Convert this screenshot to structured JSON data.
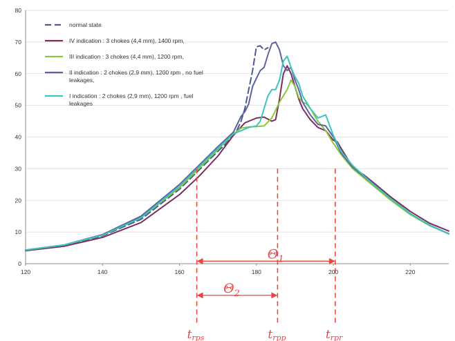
{
  "chart_data": {
    "type": "line",
    "xlim": [
      120,
      230
    ],
    "ylim": [
      0,
      80
    ],
    "x_ticks": [
      "120",
      "140",
      "160",
      "180",
      "200",
      "220"
    ],
    "y_ticks": [
      "0",
      "10",
      "20",
      "30",
      "40",
      "50",
      "60",
      "70",
      "80"
    ],
    "grid": "horizontal",
    "legend_position": "top-left",
    "series": [
      {
        "name": "normal state",
        "color": "#4a5a8c",
        "dash": "dashed",
        "points": [
          [
            120,
            4.3
          ],
          [
            130,
            5.8
          ],
          [
            140,
            8.8
          ],
          [
            150,
            14
          ],
          [
            160,
            23.5
          ],
          [
            165,
            29.5
          ],
          [
            170,
            35.5
          ],
          [
            172,
            37.8
          ],
          [
            174,
            40.5
          ],
          [
            175,
            42.3
          ],
          [
            176,
            45
          ],
          [
            177,
            49
          ],
          [
            178,
            55
          ],
          [
            179,
            61
          ],
          [
            180,
            68.5
          ],
          [
            181,
            68.8
          ],
          [
            182,
            67.5
          ],
          [
            183,
            68.2
          ]
        ]
      },
      {
        "name": "IV indication : 3 chokes (4,4 mm), 1400 rpm,",
        "color": "#7b2d5e",
        "dash": "solid",
        "points": [
          [
            120,
            4.1
          ],
          [
            130,
            5.5
          ],
          [
            140,
            8.3
          ],
          [
            150,
            13
          ],
          [
            160,
            21.8
          ],
          [
            165,
            27.5
          ],
          [
            170,
            34
          ],
          [
            174,
            40.5
          ],
          [
            177,
            44.5
          ],
          [
            180,
            46
          ],
          [
            182,
            46.3
          ],
          [
            184,
            45
          ],
          [
            185,
            45.5
          ],
          [
            186,
            52
          ],
          [
            187,
            60
          ],
          [
            188,
            62.5
          ],
          [
            189,
            60
          ],
          [
            190,
            56
          ],
          [
            191,
            52
          ],
          [
            192,
            49
          ],
          [
            194,
            45.5
          ],
          [
            196,
            43
          ],
          [
            198,
            42
          ],
          [
            200,
            39
          ],
          [
            201,
            38.5
          ],
          [
            202,
            36.5
          ],
          [
            204,
            32.5
          ],
          [
            206,
            29.5
          ],
          [
            208,
            28
          ],
          [
            210,
            26
          ],
          [
            215,
            21
          ],
          [
            220,
            16.5
          ],
          [
            225,
            12.8
          ],
          [
            230,
            10.3
          ]
        ]
      },
      {
        "name": "III indication : 3 chokes (4,4 mm), 1200 rpm,",
        "color": "#8cc63f",
        "dash": "solid",
        "points": [
          [
            120,
            4.3
          ],
          [
            130,
            5.9
          ],
          [
            140,
            9
          ],
          [
            150,
            14.5
          ],
          [
            160,
            24
          ],
          [
            165,
            30
          ],
          [
            170,
            36
          ],
          [
            174,
            41
          ],
          [
            176,
            42.8
          ],
          [
            178,
            43.2
          ],
          [
            180,
            43.3
          ],
          [
            182,
            43.5
          ],
          [
            184,
            46
          ],
          [
            186,
            51
          ],
          [
            188,
            55
          ],
          [
            189,
            58
          ],
          [
            190,
            56
          ],
          [
            191,
            52.5
          ],
          [
            192,
            51
          ],
          [
            193,
            50.5
          ],
          [
            194,
            49
          ],
          [
            196,
            45
          ],
          [
            198,
            42
          ],
          [
            200,
            38
          ],
          [
            202,
            34.5
          ],
          [
            205,
            30
          ],
          [
            210,
            25
          ],
          [
            215,
            20
          ],
          [
            220,
            15.5
          ],
          [
            225,
            12
          ],
          [
            230,
            9.5
          ]
        ]
      },
      {
        "name": "II indication : 2 chokes (2,9 mm), 1200 rpm , no fuel leakages,",
        "color": "#5a62a0",
        "dash": "solid",
        "points": [
          [
            120,
            4.3
          ],
          [
            130,
            5.9
          ],
          [
            140,
            9.2
          ],
          [
            150,
            15
          ],
          [
            160,
            25
          ],
          [
            165,
            31
          ],
          [
            170,
            37
          ],
          [
            174,
            41.5
          ],
          [
            175,
            44
          ],
          [
            176,
            46.5
          ],
          [
            177,
            48
          ],
          [
            178,
            50.5
          ],
          [
            179,
            56
          ],
          [
            180,
            58.5
          ],
          [
            181,
            61
          ],
          [
            182,
            62
          ],
          [
            183,
            66
          ],
          [
            184,
            69.5
          ],
          [
            185,
            70
          ],
          [
            186,
            67.5
          ],
          [
            187,
            62.5
          ],
          [
            188,
            61
          ],
          [
            189,
            62
          ],
          [
            190,
            58
          ],
          [
            191,
            55
          ],
          [
            192,
            51
          ],
          [
            194,
            47
          ],
          [
            196,
            44
          ],
          [
            198,
            43.5
          ],
          [
            200,
            40
          ],
          [
            202,
            35
          ],
          [
            205,
            30.5
          ],
          [
            210,
            25.5
          ],
          [
            215,
            20.5
          ],
          [
            220,
            15.8
          ],
          [
            225,
            12.2
          ],
          [
            230,
            9.4
          ]
        ]
      },
      {
        "name": "I indication : 2 chokes (2,9 mm), 1200 rpm , fuel leakages",
        "color": "#3cc3c0",
        "dash": "solid",
        "points": [
          [
            120,
            4.3
          ],
          [
            130,
            5.9
          ],
          [
            140,
            9
          ],
          [
            150,
            14.5
          ],
          [
            160,
            24.5
          ],
          [
            165,
            30.5
          ],
          [
            170,
            36.5
          ],
          [
            174,
            41
          ],
          [
            178,
            43
          ],
          [
            180,
            43.5
          ],
          [
            181,
            45
          ],
          [
            182,
            49
          ],
          [
            183,
            53
          ],
          [
            184,
            55
          ],
          [
            185,
            55
          ],
          [
            186,
            58
          ],
          [
            187,
            64
          ],
          [
            188,
            65.5
          ],
          [
            189,
            62
          ],
          [
            190,
            59
          ],
          [
            191,
            57
          ],
          [
            192,
            53
          ],
          [
            194,
            49
          ],
          [
            196,
            46
          ],
          [
            198,
            47
          ],
          [
            200,
            40.5
          ],
          [
            202,
            35.5
          ],
          [
            205,
            31
          ],
          [
            210,
            25.5
          ],
          [
            215,
            20.5
          ],
          [
            220,
            15.8
          ],
          [
            225,
            12.2
          ],
          [
            230,
            9.5
          ]
        ]
      }
    ],
    "markers": [
      {
        "label": "t",
        "sub": "rps",
        "x": 164.5
      },
      {
        "label": "t",
        "sub": "rpp",
        "x": 185.5
      },
      {
        "label": "t",
        "sub": "rpr",
        "x": 200.5
      }
    ],
    "spans": [
      {
        "label": "Θ",
        "sub": "1",
        "x1": 164.5,
        "x2": 200.5,
        "y": 0.8
      },
      {
        "label": "Θ",
        "sub": "2",
        "x1": 164.5,
        "x2": 185.5,
        "y": -10.0
      }
    ],
    "annotation_color": "#e8473f"
  }
}
